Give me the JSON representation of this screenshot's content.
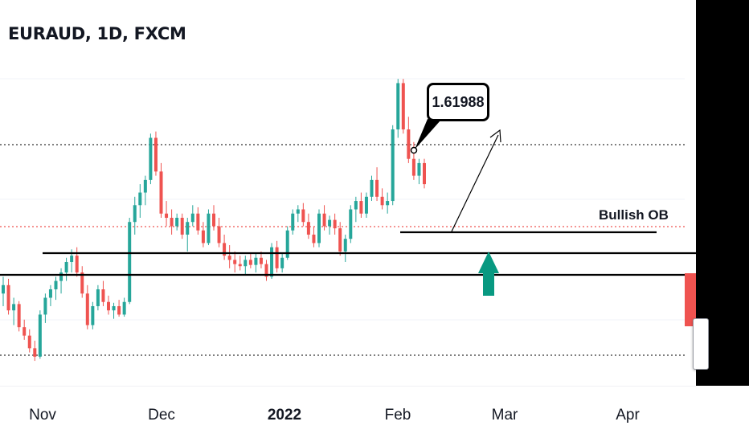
{
  "header": {
    "title": "EURAUD, 1D, FXCM"
  },
  "annotations": {
    "price_callout": "1.61988",
    "zone_label": "Bullish OB"
  },
  "colors": {
    "up": "#26a69a",
    "down": "#ef5350",
    "arrow": "#089981",
    "line": "#000000",
    "grid": "#f0f3fa"
  },
  "chart_data": {
    "type": "candlestick",
    "title": "EURAUD, 1D, FXCM",
    "x_ticks": [
      "Nov",
      "Dec",
      "2022",
      "Feb",
      "Mar",
      "Apr"
    ],
    "y_range_px_note": "price axis labels not visible",
    "annotations": [
      "1.61988",
      "Bullish OB"
    ],
    "candles": [
      [
        1.548,
        1.552,
        1.545,
        1.55
      ],
      [
        1.55,
        1.5515,
        1.543,
        1.544
      ],
      [
        1.544,
        1.547,
        1.5405,
        1.5455
      ],
      [
        1.5455,
        1.5462,
        1.539,
        1.54
      ],
      [
        1.54,
        1.5418,
        1.537,
        1.538
      ],
      [
        1.538,
        1.5395,
        1.534,
        1.535
      ],
      [
        1.535,
        1.5368,
        1.532,
        1.533
      ],
      [
        1.533,
        1.544,
        1.5325,
        1.543
      ],
      [
        1.543,
        1.548,
        1.541,
        1.547
      ],
      [
        1.547,
        1.55,
        1.545,
        1.549
      ],
      [
        1.549,
        1.552,
        1.5465,
        1.551
      ],
      [
        1.551,
        1.554,
        1.548,
        1.553
      ],
      [
        1.553,
        1.5565,
        1.551,
        1.5555
      ],
      [
        1.5555,
        1.5585,
        1.553,
        1.557
      ],
      [
        1.557,
        1.559,
        1.552,
        1.553
      ],
      [
        1.553,
        1.5545,
        1.547,
        1.548
      ],
      [
        1.548,
        1.55,
        1.5395,
        1.5405
      ],
      [
        1.5405,
        1.546,
        1.5395,
        1.545
      ],
      [
        1.545,
        1.55,
        1.544,
        1.549
      ],
      [
        1.549,
        1.551,
        1.545,
        1.546
      ],
      [
        1.546,
        1.5475,
        1.543,
        1.544
      ],
      [
        1.544,
        1.5458,
        1.542,
        1.545
      ],
      [
        1.545,
        1.5465,
        1.5425,
        1.543
      ],
      [
        1.543,
        1.547,
        1.5425,
        1.546
      ],
      [
        1.546,
        1.566,
        1.5455,
        1.565
      ],
      [
        1.565,
        1.571,
        1.562,
        1.569
      ],
      [
        1.569,
        1.574,
        1.566,
        1.572
      ],
      [
        1.572,
        1.576,
        1.569,
        1.575
      ],
      [
        1.575,
        1.586,
        1.574,
        1.585
      ],
      [
        1.585,
        1.5865,
        1.576,
        1.577
      ],
      [
        1.577,
        1.579,
        1.566,
        1.567
      ],
      [
        1.567,
        1.57,
        1.564,
        1.566
      ],
      [
        1.566,
        1.568,
        1.562,
        1.564
      ],
      [
        1.564,
        1.567,
        1.563,
        1.566
      ],
      [
        1.566,
        1.567,
        1.561,
        1.562
      ],
      [
        1.562,
        1.566,
        1.558,
        1.565
      ],
      [
        1.565,
        1.569,
        1.564,
        1.567
      ],
      [
        1.567,
        1.5685,
        1.562,
        1.563
      ],
      [
        1.563,
        1.565,
        1.559,
        1.56
      ],
      [
        1.56,
        1.568,
        1.5595,
        1.567
      ],
      [
        1.567,
        1.569,
        1.563,
        1.564
      ],
      [
        1.564,
        1.566,
        1.559,
        1.56
      ],
      [
        1.56,
        1.562,
        1.556,
        1.557
      ],
      [
        1.557,
        1.5595,
        1.554,
        1.556
      ],
      [
        1.556,
        1.558,
        1.553,
        1.555
      ],
      [
        1.555,
        1.557,
        1.5535,
        1.5545
      ],
      [
        1.5545,
        1.557,
        1.5525,
        1.556
      ],
      [
        1.556,
        1.5575,
        1.554,
        1.5548
      ],
      [
        1.5548,
        1.5575,
        1.553,
        1.5565
      ],
      [
        1.5565,
        1.558,
        1.554,
        1.555
      ],
      [
        1.555,
        1.556,
        1.551,
        1.552
      ],
      [
        1.552,
        1.56,
        1.5515,
        1.559
      ],
      [
        1.559,
        1.5605,
        1.553,
        1.554
      ],
      [
        1.554,
        1.5575,
        1.553,
        1.5565
      ],
      [
        1.5565,
        1.564,
        1.556,
        1.563
      ],
      [
        1.563,
        1.568,
        1.562,
        1.567
      ],
      [
        1.567,
        1.569,
        1.565,
        1.568
      ],
      [
        1.568,
        1.5695,
        1.564,
        1.565
      ],
      [
        1.565,
        1.567,
        1.561,
        1.562
      ],
      [
        1.562,
        1.564,
        1.559,
        1.56
      ],
      [
        1.56,
        1.568,
        1.559,
        1.567
      ],
      [
        1.567,
        1.569,
        1.563,
        1.564
      ],
      [
        1.564,
        1.5665,
        1.562,
        1.5655
      ],
      [
        1.5655,
        1.567,
        1.562,
        1.5635
      ],
      [
        1.5635,
        1.565,
        1.557,
        1.558
      ],
      [
        1.558,
        1.562,
        1.5555,
        1.561
      ],
      [
        1.561,
        1.569,
        1.56,
        1.568
      ],
      [
        1.568,
        1.571,
        1.565,
        1.57
      ],
      [
        1.57,
        1.572,
        1.566,
        1.567
      ],
      [
        1.567,
        1.572,
        1.566,
        1.571
      ],
      [
        1.571,
        1.576,
        1.57,
        1.575
      ],
      [
        1.575,
        1.578,
        1.57,
        1.571
      ],
      [
        1.571,
        1.573,
        1.568,
        1.569
      ],
      [
        1.569,
        1.572,
        1.567,
        1.57
      ],
      [
        1.57,
        1.588,
        1.569,
        1.587
      ],
      [
        1.587,
        1.599,
        1.585,
        1.598
      ],
      [
        1.598,
        1.599,
        1.586,
        1.587
      ],
      [
        1.587,
        1.59,
        1.579,
        1.58
      ],
      [
        1.58,
        1.584,
        1.575,
        1.576
      ],
      [
        1.576,
        1.58,
        1.574,
        1.579
      ],
      [
        1.579,
        1.58,
        1.573,
        1.574
      ]
    ]
  },
  "price_scale": {
    "y_top_price": 1.604,
    "y_bottom_price": 1.528
  }
}
